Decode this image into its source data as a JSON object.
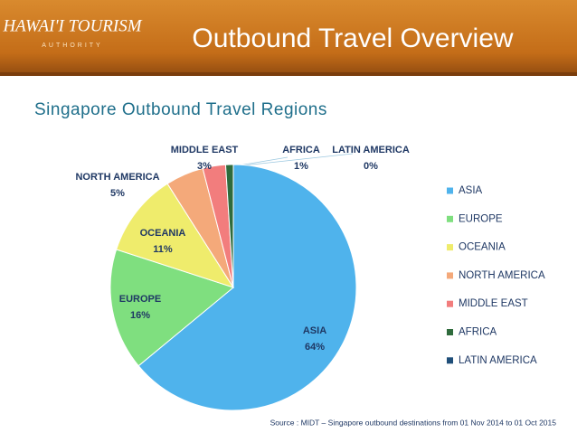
{
  "header": {
    "logo": "HAWAI'I TOURISM",
    "logo_sub": "AUTHORITY",
    "title": "Outbound Travel Overview"
  },
  "chart_data": {
    "type": "pie",
    "title": "Singapore Outbound Travel Regions",
    "categories": [
      "ASIA",
      "EUROPE",
      "OCEANIA",
      "NORTH AMERICA",
      "MIDDLE EAST",
      "AFRICA",
      "LATIN AMERICA"
    ],
    "values": [
      64,
      16,
      11,
      5,
      3,
      1,
      0
    ],
    "value_labels": [
      "64%",
      "16%",
      "11%",
      "5%",
      "3%",
      "1%",
      "0%"
    ],
    "colors": [
      "#4fb3ec",
      "#7fdf7f",
      "#efec6c",
      "#f4a97a",
      "#f27d7d",
      "#2f6b3c",
      "#1f4e79"
    ],
    "legend": "right",
    "source": "Source : MIDT – Singapore outbound destinations from 01 Nov 2014 to 01 Oct 2015"
  }
}
